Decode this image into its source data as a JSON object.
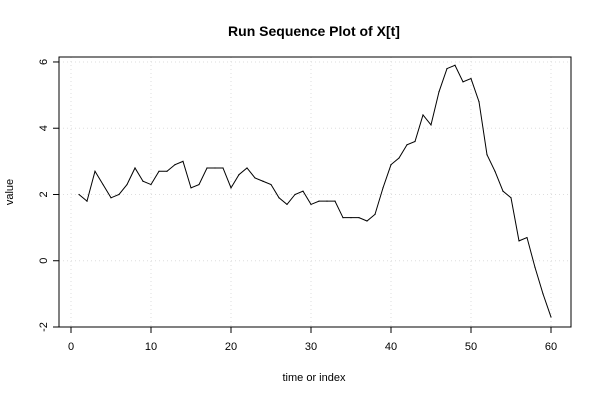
{
  "chart_data": {
    "type": "line",
    "title": "Run Sequence Plot of X[t]",
    "xlabel": "time or index",
    "ylabel": "value",
    "xlim": [
      -1.5,
      62.5
    ],
    "ylim": [
      -2,
      6.15
    ],
    "grid": true,
    "x_ticks": [
      0,
      10,
      20,
      30,
      40,
      50,
      60
    ],
    "x_tick_labels": [
      "0",
      "10",
      "20",
      "30",
      "40",
      "50",
      "60"
    ],
    "y_ticks": [
      -2,
      0,
      2,
      4,
      6
    ],
    "y_tick_labels": [
      "-2",
      "0",
      "2",
      "4",
      "6"
    ],
    "colors": {
      "line": "#000000",
      "grid": "#dddddd",
      "axis": "#000000"
    },
    "series": [
      {
        "x": [
          1,
          2,
          3,
          4,
          5,
          6,
          7,
          8,
          9,
          10,
          11,
          12,
          13,
          14,
          15,
          16,
          17,
          18,
          19,
          20,
          21,
          22,
          23,
          24,
          25,
          26,
          27,
          28,
          29,
          30,
          31,
          32,
          33,
          34,
          35,
          36,
          37,
          38,
          39,
          40,
          41,
          42,
          43,
          44,
          45,
          46,
          47,
          48,
          49,
          50,
          51,
          52,
          53,
          54,
          55,
          56,
          57,
          58,
          59,
          60
        ],
        "values": [
          2.0,
          1.8,
          2.7,
          2.3,
          1.9,
          2.0,
          2.3,
          2.8,
          2.4,
          2.3,
          2.7,
          2.7,
          2.9,
          3.0,
          2.2,
          2.3,
          2.8,
          2.8,
          2.8,
          2.2,
          2.6,
          2.8,
          2.5,
          2.4,
          2.3,
          1.9,
          1.7,
          2.0,
          2.1,
          1.7,
          1.8,
          1.8,
          1.8,
          1.3,
          1.3,
          1.3,
          1.2,
          1.4,
          2.2,
          2.9,
          3.1,
          3.5,
          3.6,
          4.4,
          4.1,
          5.1,
          5.8,
          5.9,
          5.4,
          5.5,
          4.8,
          3.2,
          2.7,
          2.1,
          1.9,
          0.6,
          0.7,
          -0.2,
          -1.0,
          -1.7
        ]
      }
    ]
  }
}
